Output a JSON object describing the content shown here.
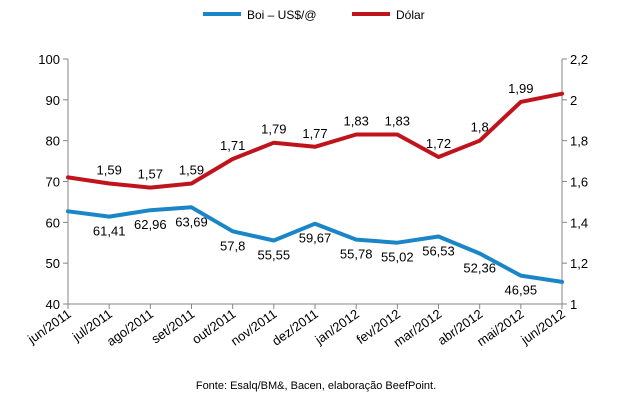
{
  "chart_data": {
    "type": "line",
    "categories": [
      "jun/2011",
      "jul/2011",
      "ago/2011",
      "set/2011",
      "out/2011",
      "nov/2011",
      "dez/2011",
      "jan/2012",
      "fev/2012",
      "mar/2012",
      "abr/2012",
      "mai/2012",
      "jun/2012"
    ],
    "series": [
      {
        "name": "Boi – US$/@",
        "axis": "left",
        "color": "#1a86c8",
        "values": [
          62.7,
          61.41,
          62.96,
          63.69,
          57.8,
          55.55,
          59.67,
          55.78,
          55.02,
          56.53,
          52.36,
          46.95,
          45.4
        ],
        "labels": [
          "",
          "61,41",
          "62,96",
          "63,69",
          "57,8",
          "55,55",
          "59,67",
          "55,78",
          "55,02",
          "56,53",
          "52,36",
          "46,95",
          ""
        ]
      },
      {
        "name": "Dólar",
        "axis": "right",
        "color": "#c0141c",
        "values": [
          1.62,
          1.59,
          1.57,
          1.59,
          1.71,
          1.79,
          1.77,
          1.83,
          1.83,
          1.72,
          1.8,
          1.99,
          2.03
        ],
        "labels": [
          "",
          "1,59",
          "1,57",
          "1,59",
          "1,71",
          "1,79",
          "1,77",
          "1,83",
          "1,83",
          "1,72",
          "1,8",
          "1,99",
          ""
        ]
      }
    ],
    "y_left": {
      "ylim": [
        40,
        100
      ],
      "ticks": [
        "40",
        "50",
        "60",
        "70",
        "80",
        "90",
        "100"
      ]
    },
    "y_right": {
      "ylim": [
        1,
        2.2
      ],
      "ticks": [
        "1",
        "1,2",
        "1,4",
        "1,6",
        "1,8",
        "2",
        "2,2"
      ]
    },
    "grid": false,
    "legend_placement": "top",
    "annotation": "Fonte: Esalq/BM&, Bacen, elaboração BeefPoint."
  }
}
